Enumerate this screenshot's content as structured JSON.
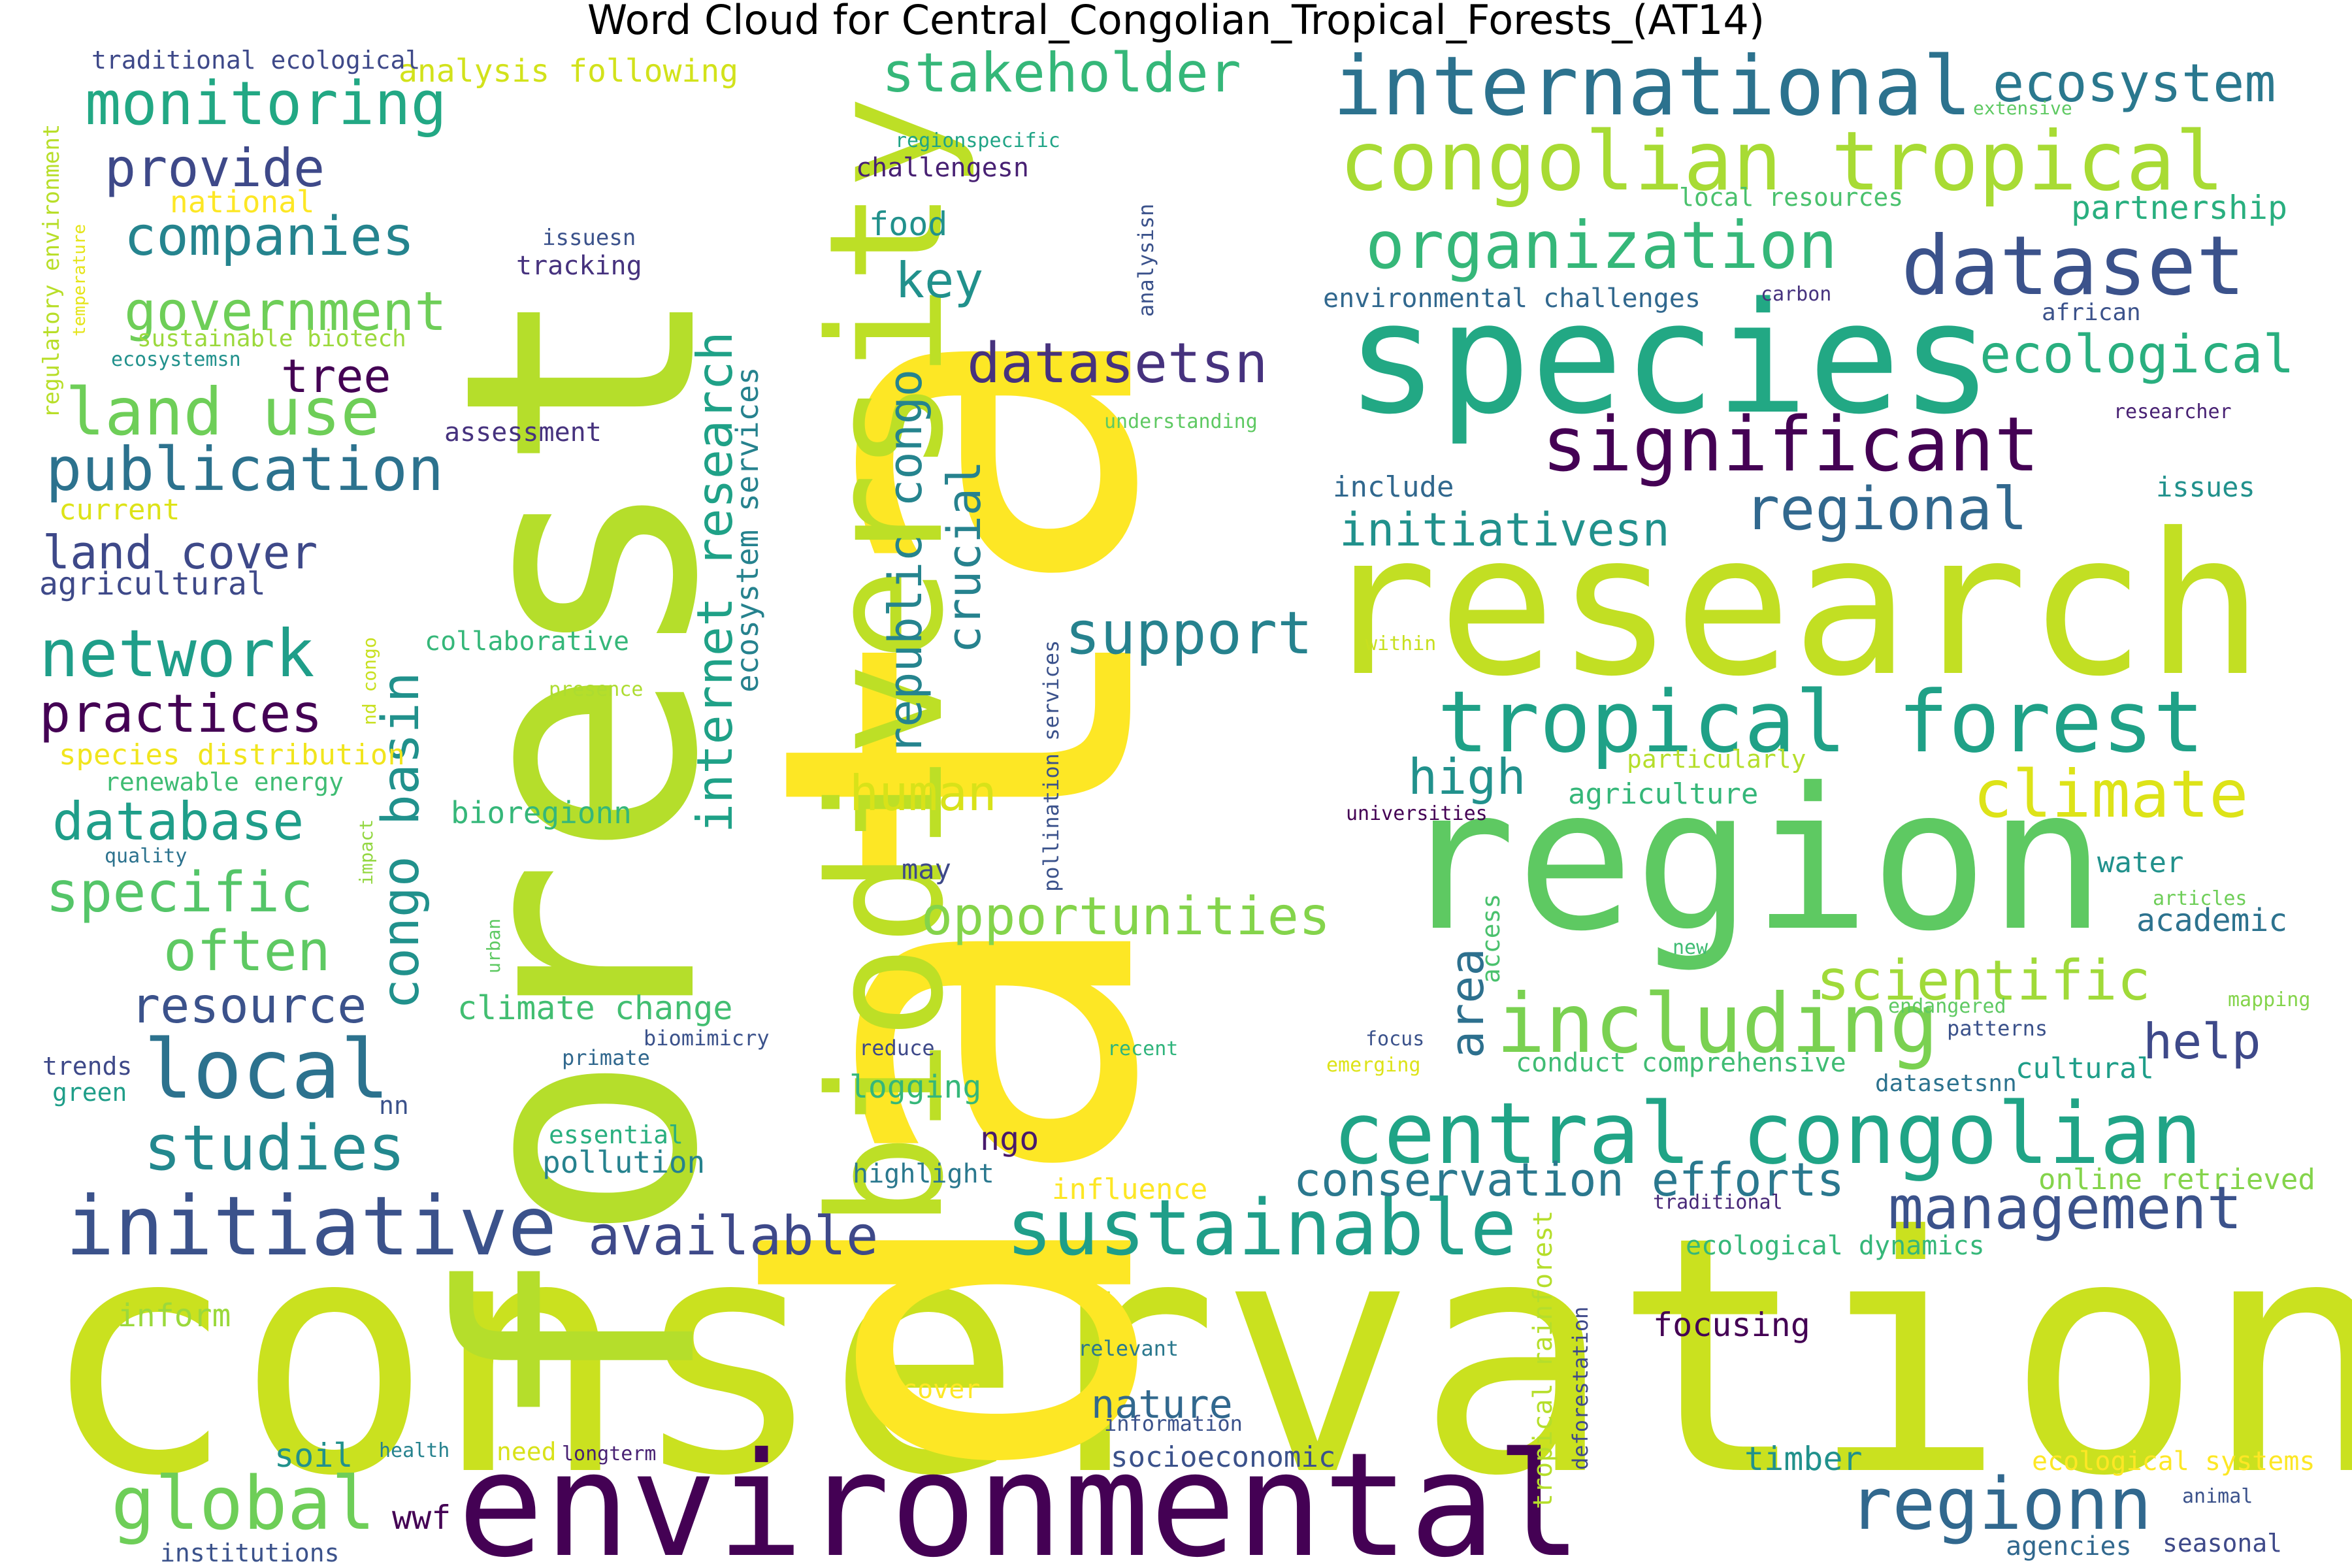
{
  "title": "Word Cloud for Central_Congolian_Tropical_Forests_(AT14)",
  "words": [
    {
      "text": "conservation",
      "color": "#cae11f"
    },
    {
      "text": "data",
      "color": "#fde725"
    },
    {
      "text": "forest",
      "color": "#b5de2b"
    },
    {
      "text": "biodiversity",
      "color": "#bddf26"
    },
    {
      "text": "research",
      "color": "#c2df23"
    },
    {
      "text": "region",
      "color": "#5ec962"
    },
    {
      "text": "species",
      "color": "#22a884"
    },
    {
      "text": "environmental",
      "color": "#440154"
    },
    {
      "text": "central congolian",
      "color": "#20a486"
    },
    {
      "text": "congolian tropical",
      "color": "#a8db34"
    },
    {
      "text": "tropical forest",
      "color": "#1fa187"
    },
    {
      "text": "initiative",
      "color": "#3b528b"
    },
    {
      "text": "sustainable",
      "color": "#1f9e89"
    },
    {
      "text": "international",
      "color": "#2c728e"
    },
    {
      "text": "dataset",
      "color": "#3b528b"
    },
    {
      "text": "organization",
      "color": "#35b779"
    },
    {
      "text": "significant",
      "color": "#440154"
    },
    {
      "text": "climate",
      "color": "#dde318"
    },
    {
      "text": "including",
      "color": "#7ad151"
    },
    {
      "text": "management",
      "color": "#3b528b"
    },
    {
      "text": "regionn",
      "color": "#31688e"
    },
    {
      "text": "global",
      "color": "#6ece58"
    },
    {
      "text": "local",
      "color": "#2c728e"
    },
    {
      "text": "monitoring",
      "color": "#22a884"
    },
    {
      "text": "stakeholder",
      "color": "#35b779"
    },
    {
      "text": "ecosystem",
      "color": "#2a788e"
    },
    {
      "text": "datasetsn",
      "color": "#46327e"
    },
    {
      "text": "ecological",
      "color": "#29af7f"
    },
    {
      "text": "regional",
      "color": "#31688e"
    },
    {
      "text": "publication",
      "color": "#2c728e"
    },
    {
      "text": "land use",
      "color": "#6ece58"
    },
    {
      "text": "network",
      "color": "#1f9e89"
    },
    {
      "text": "companies",
      "color": "#25848e"
    },
    {
      "text": "government",
      "color": "#6ece58"
    },
    {
      "text": "provide",
      "color": "#3e4989"
    },
    {
      "text": "support",
      "color": "#26828e"
    },
    {
      "text": "opportunities",
      "color": "#84d44b"
    },
    {
      "text": "initiativesn",
      "color": "#21918c"
    },
    {
      "text": "scientific",
      "color": "#a0da39"
    },
    {
      "text": "studies",
      "color": "#23888e"
    },
    {
      "text": "available",
      "color": "#3e4989"
    },
    {
      "text": "conservation efforts",
      "color": "#2a788e"
    },
    {
      "text": "practices",
      "color": "#440154"
    },
    {
      "text": "specific",
      "color": "#54c568"
    },
    {
      "text": "often",
      "color": "#5ec962"
    },
    {
      "text": "database",
      "color": "#1f9e89"
    },
    {
      "text": "resource",
      "color": "#3b528b"
    },
    {
      "text": "congo basin",
      "color": "#21918c"
    },
    {
      "text": "internet research",
      "color": "#1fa187"
    },
    {
      "text": "republic congo",
      "color": "#25848e"
    },
    {
      "text": "crucial",
      "color": "#26828e"
    },
    {
      "text": "key",
      "color": "#21918c"
    },
    {
      "text": "human",
      "color": "#d8e219"
    },
    {
      "text": "high",
      "color": "#21918c"
    },
    {
      "text": "area",
      "color": "#2d708e"
    },
    {
      "text": "help",
      "color": "#3e4989"
    },
    {
      "text": "land cover",
      "color": "#3e4989"
    },
    {
      "text": "tree",
      "color": "#440154"
    },
    {
      "text": "partnership",
      "color": "#29af7f"
    },
    {
      "text": "ecosystem services",
      "color": "#26828e"
    },
    {
      "text": "climate change",
      "color": "#42be71"
    },
    {
      "text": "food",
      "color": "#21918c"
    },
    {
      "text": "challengesn",
      "color": "#482173"
    },
    {
      "text": "analysis following",
      "color": "#d2e21b"
    },
    {
      "text": "traditional ecological",
      "color": "#3e4989"
    },
    {
      "text": "regulatory environment",
      "color": "#b8de29"
    },
    {
      "text": "temperature",
      "color": "#e5e419"
    },
    {
      "text": "national",
      "color": "#fde725"
    },
    {
      "text": "issuesn",
      "color": "#3b528b"
    },
    {
      "text": "tracking",
      "color": "#46327e"
    },
    {
      "text": "sustainable biotech",
      "color": "#9bd93c"
    },
    {
      "text": "ecosystemsn",
      "color": "#21918c"
    },
    {
      "text": "assessment",
      "color": "#46327e"
    },
    {
      "text": "current",
      "color": "#dde318"
    },
    {
      "text": "agricultural",
      "color": "#3e4989"
    },
    {
      "text": "collaborative",
      "color": "#35b779"
    },
    {
      "text": "presence",
      "color": "#addc30"
    },
    {
      "text": "nd congo",
      "color": "#c8e020"
    },
    {
      "text": "species distribution",
      "color": "#f1e51d"
    },
    {
      "text": "renewable energy",
      "color": "#3fbc73"
    },
    {
      "text": "bioregionn",
      "color": "#35b779"
    },
    {
      "text": "quality",
      "color": "#2c728e"
    },
    {
      "text": "impact",
      "color": "#93d741"
    },
    {
      "text": "urban",
      "color": "#5ec962"
    },
    {
      "text": "trends",
      "color": "#3e4989"
    },
    {
      "text": "green",
      "color": "#1f9e89"
    },
    {
      "text": "nn",
      "color": "#3b528b"
    },
    {
      "text": "biomimicry",
      "color": "#3b528b"
    },
    {
      "text": "primate",
      "color": "#31688e"
    },
    {
      "text": "reduce",
      "color": "#3e4989"
    },
    {
      "text": "logging",
      "color": "#35b779"
    },
    {
      "text": "ngo",
      "color": "#481a6c"
    },
    {
      "text": "essential",
      "color": "#29af7f"
    },
    {
      "text": "pollution",
      "color": "#26828e"
    },
    {
      "text": "highlight",
      "color": "#2a788e"
    },
    {
      "text": "influence",
      "color": "#fde725"
    },
    {
      "text": "may",
      "color": "#3e4989"
    },
    {
      "text": "pollination services",
      "color": "#3b528b"
    },
    {
      "text": "access",
      "color": "#4ac16d"
    },
    {
      "text": "analysisn",
      "color": "#3b528b"
    },
    {
      "text": "regionspecific",
      "color": "#20a486"
    },
    {
      "text": "understanding",
      "color": "#5ec962"
    },
    {
      "text": "include",
      "color": "#31688e"
    },
    {
      "text": "within",
      "color": "#c8e020"
    },
    {
      "text": "particularly",
      "color": "#b5de2b"
    },
    {
      "text": "agriculture",
      "color": "#35b779"
    },
    {
      "text": "universities",
      "color": "#440154"
    },
    {
      "text": "environmental challenges",
      "color": "#31688e"
    },
    {
      "text": "carbon",
      "color": "#46327e"
    },
    {
      "text": "african",
      "color": "#3b528b"
    },
    {
      "text": "researcher",
      "color": "#482173"
    },
    {
      "text": "issues",
      "color": "#21918c"
    },
    {
      "text": "local resources",
      "color": "#4ac16d"
    },
    {
      "text": "extensive",
      "color": "#5ec962"
    },
    {
      "text": "water",
      "color": "#21918c"
    },
    {
      "text": "articles",
      "color": "#6ece58"
    },
    {
      "text": "academic",
      "color": "#2c728e"
    },
    {
      "text": "new",
      "color": "#3fbc73"
    },
    {
      "text": "endangered",
      "color": "#5ec962"
    },
    {
      "text": "mapping",
      "color": "#84d44b"
    },
    {
      "text": "patterns",
      "color": "#3b528b"
    },
    {
      "text": "cultural",
      "color": "#1f9e89"
    },
    {
      "text": "datasetsnn",
      "color": "#2c728e"
    },
    {
      "text": "focus",
      "color": "#3b528b"
    },
    {
      "text": "emerging",
      "color": "#dde318"
    },
    {
      "text": "recent",
      "color": "#2fb47c"
    },
    {
      "text": "conduct comprehensive",
      "color": "#3fbc73"
    },
    {
      "text": "online retrieved",
      "color": "#84d44b"
    },
    {
      "text": "traditional",
      "color": "#482878"
    },
    {
      "text": "ecological dynamics",
      "color": "#35b779"
    },
    {
      "text": "focusing",
      "color": "#440154"
    },
    {
      "text": "relevant",
      "color": "#2a788e"
    },
    {
      "text": "cover",
      "color": "#fde725"
    },
    {
      "text": "nature",
      "color": "#31688e"
    },
    {
      "text": "information",
      "color": "#3b528b"
    },
    {
      "text": "socioeconomic",
      "color": "#3b528b"
    },
    {
      "text": "tropical rainforest",
      "color": "#b5de2b"
    },
    {
      "text": "deforestation",
      "color": "#3e4989"
    },
    {
      "text": "timber",
      "color": "#21918c"
    },
    {
      "text": "ecological systems",
      "color": "#fde725"
    },
    {
      "text": "animal",
      "color": "#3b528b"
    },
    {
      "text": "agencies",
      "color": "#31688e"
    },
    {
      "text": "seasonal",
      "color": "#3e4989"
    },
    {
      "text": "inform",
      "color": "#9bd93c"
    },
    {
      "text": "soil",
      "color": "#21918c"
    },
    {
      "text": "health",
      "color": "#26828e"
    },
    {
      "text": "need",
      "color": "#d8e219"
    },
    {
      "text": "longterm",
      "color": "#482173"
    },
    {
      "text": "wwf",
      "color": "#440154"
    },
    {
      "text": "institutions",
      "color": "#3b528b"
    }
  ]
}
